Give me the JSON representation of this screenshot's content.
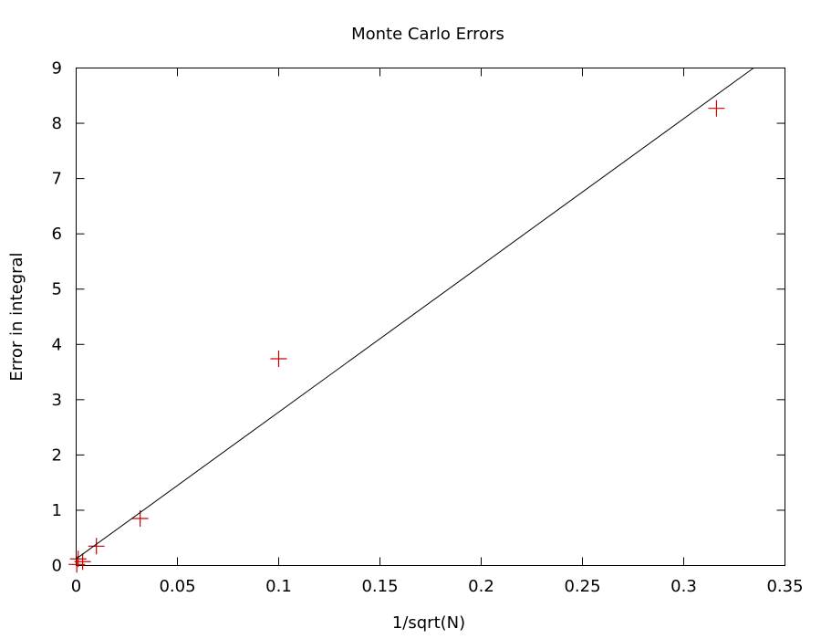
{
  "chart_data": {
    "type": "scatter",
    "title": "Monte Carlo Errors",
    "xlabel": "1/sqrt(N)",
    "ylabel": "Error in integral",
    "xlim": [
      0,
      0.35
    ],
    "ylim": [
      0,
      9
    ],
    "xticks": [
      "0",
      "0.05",
      "0.1",
      "0.15",
      "0.2",
      "0.25",
      "0.3",
      "0.35"
    ],
    "yticks": [
      "0",
      "1",
      "2",
      "3",
      "4",
      "5",
      "6",
      "7",
      "8",
      "9"
    ],
    "grid": false,
    "legend": "none",
    "series": [
      {
        "type": "scatter",
        "marker": "plus",
        "color": "#cc0000",
        "x": [
          0.3162,
          0.1,
          0.0316,
          0.01,
          0.0032,
          0.001,
          0.0003
        ],
        "y": [
          8.27,
          3.74,
          0.85,
          0.35,
          0.07,
          0.12,
          0.02
        ]
      },
      {
        "type": "line",
        "color": "#000000",
        "x": [
          0,
          0.3345
        ],
        "y": [
          0.12,
          9.0
        ]
      }
    ]
  }
}
